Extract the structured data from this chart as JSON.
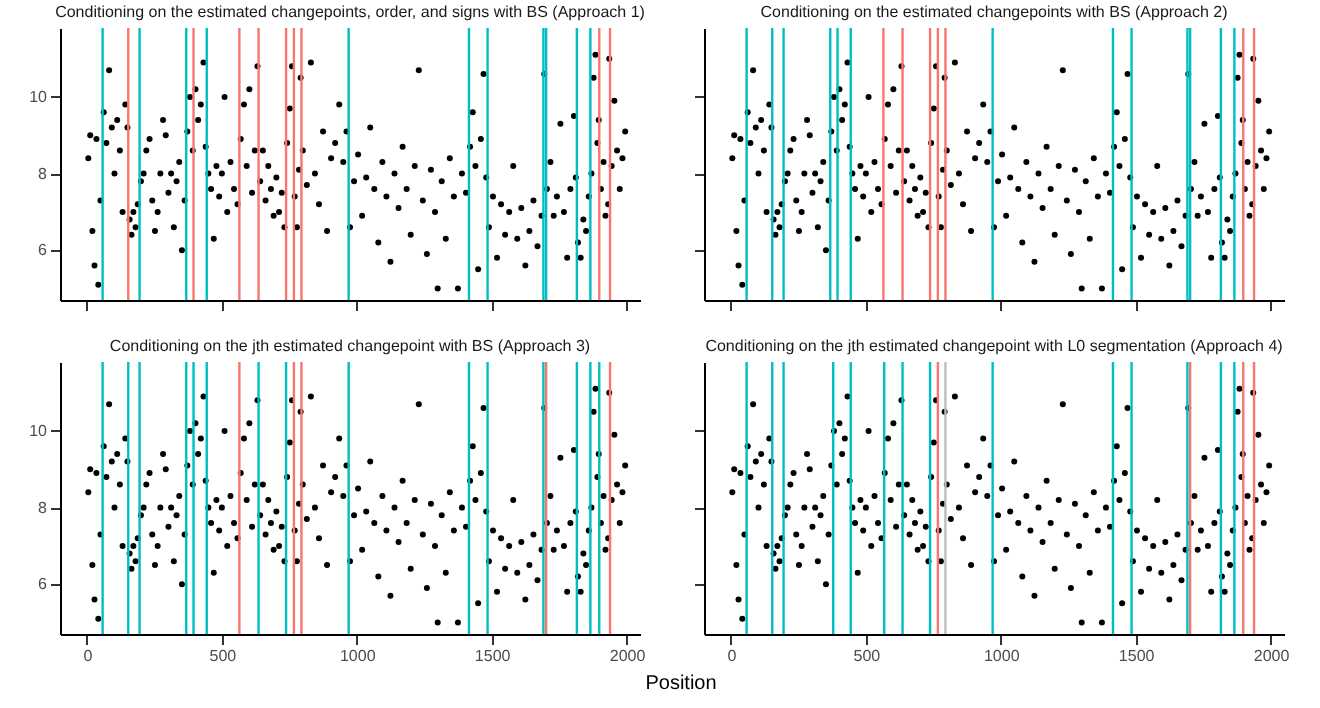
{
  "chart_data": [
    {
      "type": "scatter",
      "title": "Conditioning on the estimated changepoints, order, and signs with BS (Approach 1)",
      "marker": "circle",
      "tick_labels": "y",
      "xlim": [
        -100,
        2050
      ],
      "ylim": [
        4.7,
        11.8
      ],
      "xticks": [
        0,
        500,
        1000,
        1500,
        2000
      ],
      "yticks": [
        6,
        8,
        10
      ],
      "ref_lines": [
        {
          "axis": "x",
          "value": 58,
          "color": "#00bfc4"
        },
        {
          "axis": "x",
          "value": 153,
          "color": "#f8766d"
        },
        {
          "axis": "x",
          "value": 195,
          "color": "#00bfc4"
        },
        {
          "axis": "x",
          "value": 368,
          "color": "#00bfc4"
        },
        {
          "axis": "x",
          "value": 395,
          "color": "#f8766d"
        },
        {
          "axis": "x",
          "value": 444,
          "color": "#00bfc4"
        },
        {
          "axis": "x",
          "value": 565,
          "color": "#f8766d"
        },
        {
          "axis": "x",
          "value": 636,
          "color": "#f8766d"
        },
        {
          "axis": "x",
          "value": 738,
          "color": "#f8766d"
        },
        {
          "axis": "x",
          "value": 767,
          "color": "#f8766d"
        },
        {
          "axis": "x",
          "value": 795,
          "color": "#f8766d"
        },
        {
          "axis": "x",
          "value": 970,
          "color": "#00bfc4"
        },
        {
          "axis": "x",
          "value": 1416,
          "color": "#00bfc4"
        },
        {
          "axis": "x",
          "value": 1485,
          "color": "#00bfc4"
        },
        {
          "axis": "x",
          "value": 1692,
          "color": "#00bfc4"
        },
        {
          "axis": "x",
          "value": 1702,
          "color": "#00bfc4"
        },
        {
          "axis": "x",
          "value": 1816,
          "color": "#00bfc4"
        },
        {
          "axis": "x",
          "value": 1866,
          "color": "#00bfc4"
        },
        {
          "axis": "x",
          "value": 1899,
          "color": "#f8766d"
        },
        {
          "axis": "x",
          "value": 1939,
          "color": "#f8766d"
        }
      ],
      "series": [
        {
          "color": "#000000",
          "x": [
            5,
            12,
            20,
            28,
            35,
            42,
            50,
            62,
            72,
            82,
            92,
            102,
            112,
            122,
            132,
            142,
            150,
            158,
            165,
            172,
            180,
            188,
            200,
            210,
            220,
            232,
            242,
            252,
            262,
            272,
            282,
            292,
            302,
            312,
            322,
            332,
            342,
            352,
            362,
            372,
            382,
            392,
            402,
            412,
            422,
            432,
            440,
            450,
            460,
            470,
            480,
            490,
            500,
            510,
            520,
            532,
            545,
            558,
            570,
            582,
            592,
            602,
            612,
            622,
            632,
            642,
            652,
            662,
            672,
            682,
            692,
            702,
            712,
            722,
            732,
            742,
            752,
            760,
            770,
            778,
            786,
            792,
            800,
            815,
            830,
            845,
            860,
            875,
            890,
            905,
            920,
            935,
            950,
            962,
            975,
            990,
            1005,
            1020,
            1035,
            1050,
            1065,
            1080,
            1095,
            1110,
            1125,
            1140,
            1155,
            1170,
            1185,
            1200,
            1215,
            1230,
            1245,
            1260,
            1275,
            1290,
            1300,
            1315,
            1330,
            1345,
            1360,
            1375,
            1390,
            1405,
            1420,
            1430,
            1440,
            1450,
            1460,
            1470,
            1480,
            1490,
            1505,
            1520,
            1535,
            1550,
            1565,
            1580,
            1595,
            1610,
            1625,
            1640,
            1655,
            1670,
            1685,
            1695,
            1705,
            1718,
            1730,
            1742,
            1755,
            1768,
            1780,
            1792,
            1805,
            1812,
            1820,
            1830,
            1840,
            1850,
            1860,
            1870,
            1878,
            1885,
            1892,
            1897,
            1905,
            1915,
            1922,
            1932,
            1936,
            1945,
            1955,
            1965,
            1975,
            1985,
            1995
          ],
          "values": [
            8.4,
            9.0,
            6.5,
            5.6,
            8.9,
            5.1,
            7.3,
            9.6,
            8.8,
            10.7,
            9.2,
            8.0,
            9.4,
            8.6,
            7.0,
            9.8,
            9.2,
            6.8,
            6.4,
            7.0,
            6.6,
            7.2,
            7.8,
            8.0,
            8.6,
            8.9,
            7.3,
            6.5,
            7.0,
            8.0,
            9.4,
            9.0,
            7.5,
            8.0,
            6.6,
            7.8,
            8.3,
            6.0,
            7.3,
            9.1,
            10.0,
            8.6,
            10.2,
            9.4,
            9.8,
            10.9,
            8.7,
            8.0,
            7.6,
            6.3,
            8.2,
            7.4,
            8.0,
            10.0,
            7.0,
            8.3,
            7.6,
            7.2,
            8.9,
            9.8,
            8.2,
            10.2,
            7.5,
            8.6,
            10.8,
            7.8,
            8.6,
            7.3,
            8.2,
            7.6,
            6.9,
            7.9,
            7.0,
            7.5,
            6.6,
            8.8,
            9.7,
            10.8,
            7.4,
            6.6,
            8.1,
            10.5,
            8.6,
            7.7,
            10.9,
            8.0,
            7.2,
            9.1,
            6.5,
            8.4,
            8.8,
            9.8,
            8.3,
            9.1,
            6.6,
            7.8,
            8.5,
            6.9,
            7.9,
            9.2,
            7.6,
            6.2,
            8.3,
            7.4,
            5.7,
            8.0,
            7.1,
            8.7,
            7.6,
            6.4,
            8.2,
            10.7,
            7.3,
            5.9,
            8.1,
            7.0,
            5.0,
            7.8,
            6.3,
            8.4,
            7.4,
            5.0,
            8.0,
            7.5,
            8.7,
            9.6,
            8.2,
            5.5,
            8.9,
            10.6,
            7.9,
            6.6,
            7.4,
            5.8,
            7.2,
            6.4,
            7.0,
            8.2,
            6.3,
            7.1,
            5.6,
            6.5,
            7.3,
            6.1,
            6.9,
            10.6,
            7.6,
            8.3,
            6.9,
            7.4,
            9.3,
            7.0,
            5.8,
            7.6,
            9.5,
            7.9,
            6.2,
            5.8,
            6.8,
            6.5,
            7.4,
            8.0,
            10.5,
            11.1,
            8.8,
            9.4,
            7.6,
            8.3,
            6.9,
            7.2,
            11.0,
            8.2,
            9.9,
            8.6,
            7.6,
            8.4,
            9.1
          ]
        }
      ]
    },
    {
      "type": "scatter",
      "title": "Conditioning on the estimated changepoints with BS (Approach 2)",
      "marker": "circle",
      "tick_labels": false,
      "xlim": [
        -100,
        2050
      ],
      "ylim": [
        4.7,
        11.8
      ],
      "xticks": [
        0,
        500,
        1000,
        1500,
        2000
      ],
      "yticks": [
        6,
        8,
        10
      ],
      "ref_lines": [
        {
          "axis": "x",
          "value": 58,
          "color": "#00bfc4"
        },
        {
          "axis": "x",
          "value": 153,
          "color": "#00bfc4"
        },
        {
          "axis": "x",
          "value": 195,
          "color": "#00bfc4"
        },
        {
          "axis": "x",
          "value": 368,
          "color": "#00bfc4"
        },
        {
          "axis": "x",
          "value": 395,
          "color": "#00bfc4"
        },
        {
          "axis": "x",
          "value": 444,
          "color": "#00bfc4"
        },
        {
          "axis": "x",
          "value": 565,
          "color": "#f8766d"
        },
        {
          "axis": "x",
          "value": 636,
          "color": "#f8766d"
        },
        {
          "axis": "x",
          "value": 738,
          "color": "#f8766d"
        },
        {
          "axis": "x",
          "value": 767,
          "color": "#f8766d"
        },
        {
          "axis": "x",
          "value": 795,
          "color": "#f8766d"
        },
        {
          "axis": "x",
          "value": 970,
          "color": "#00bfc4"
        },
        {
          "axis": "x",
          "value": 1416,
          "color": "#00bfc4"
        },
        {
          "axis": "x",
          "value": 1485,
          "color": "#00bfc4"
        },
        {
          "axis": "x",
          "value": 1692,
          "color": "#00bfc4"
        },
        {
          "axis": "x",
          "value": 1702,
          "color": "#00bfc4"
        },
        {
          "axis": "x",
          "value": 1816,
          "color": "#00bfc4"
        },
        {
          "axis": "x",
          "value": 1866,
          "color": "#00bfc4"
        },
        {
          "axis": "x",
          "value": 1899,
          "color": "#f8766d"
        },
        {
          "axis": "x",
          "value": 1939,
          "color": "#f8766d"
        }
      ],
      "series": [
        {
          "color": "#000000",
          "x": [
            5,
            12,
            20,
            28,
            35,
            42,
            50,
            62,
            72,
            82,
            92,
            102,
            112,
            122,
            132,
            142,
            150,
            158,
            165,
            172,
            180,
            188,
            200,
            210,
            220,
            232,
            242,
            252,
            262,
            272,
            282,
            292,
            302,
            312,
            322,
            332,
            342,
            352,
            362,
            372,
            382,
            392,
            402,
            412,
            422,
            432,
            440,
            450,
            460,
            470,
            480,
            490,
            500,
            510,
            520,
            532,
            545,
            558,
            570,
            582,
            592,
            602,
            612,
            622,
            632,
            642,
            652,
            662,
            672,
            682,
            692,
            702,
            712,
            722,
            732,
            742,
            752,
            760,
            770,
            778,
            786,
            792,
            800,
            815,
            830,
            845,
            860,
            875,
            890,
            905,
            920,
            935,
            950,
            962,
            975,
            990,
            1005,
            1020,
            1035,
            1050,
            1065,
            1080,
            1095,
            1110,
            1125,
            1140,
            1155,
            1170,
            1185,
            1200,
            1215,
            1230,
            1245,
            1260,
            1275,
            1290,
            1300,
            1315,
            1330,
            1345,
            1360,
            1375,
            1390,
            1405,
            1420,
            1430,
            1440,
            1450,
            1460,
            1470,
            1480,
            1490,
            1505,
            1520,
            1535,
            1550,
            1565,
            1580,
            1595,
            1610,
            1625,
            1640,
            1655,
            1670,
            1685,
            1695,
            1705,
            1718,
            1730,
            1742,
            1755,
            1768,
            1780,
            1792,
            1805,
            1812,
            1820,
            1830,
            1840,
            1850,
            1860,
            1870,
            1878,
            1885,
            1892,
            1897,
            1905,
            1915,
            1922,
            1932,
            1936,
            1945,
            1955,
            1965,
            1975,
            1985,
            1995
          ],
          "values": [
            8.4,
            9.0,
            6.5,
            5.6,
            8.9,
            5.1,
            7.3,
            9.6,
            8.8,
            10.7,
            9.2,
            8.0,
            9.4,
            8.6,
            7.0,
            9.8,
            9.2,
            6.8,
            6.4,
            7.0,
            6.6,
            7.2,
            7.8,
            8.0,
            8.6,
            8.9,
            7.3,
            6.5,
            7.0,
            8.0,
            9.4,
            9.0,
            7.5,
            8.0,
            6.6,
            7.8,
            8.3,
            6.0,
            7.3,
            9.1,
            10.0,
            8.6,
            10.2,
            9.4,
            9.8,
            10.9,
            8.7,
            8.0,
            7.6,
            6.3,
            8.2,
            7.4,
            8.0,
            10.0,
            7.0,
            8.3,
            7.6,
            7.2,
            8.9,
            9.8,
            8.2,
            10.2,
            7.5,
            8.6,
            10.8,
            7.8,
            8.6,
            7.3,
            8.2,
            7.6,
            6.9,
            7.9,
            7.0,
            7.5,
            6.6,
            8.8,
            9.7,
            10.8,
            7.4,
            6.6,
            8.1,
            10.5,
            8.6,
            7.7,
            10.9,
            8.0,
            7.2,
            9.1,
            6.5,
            8.4,
            8.8,
            9.8,
            8.3,
            9.1,
            6.6,
            7.8,
            8.5,
            6.9,
            7.9,
            9.2,
            7.6,
            6.2,
            8.3,
            7.4,
            5.7,
            8.0,
            7.1,
            8.7,
            7.6,
            6.4,
            8.2,
            10.7,
            7.3,
            5.9,
            8.1,
            7.0,
            5.0,
            7.8,
            6.3,
            8.4,
            7.4,
            5.0,
            8.0,
            7.5,
            8.7,
            9.6,
            8.2,
            5.5,
            8.9,
            10.6,
            7.9,
            6.6,
            7.4,
            5.8,
            7.2,
            6.4,
            7.0,
            8.2,
            6.3,
            7.1,
            5.6,
            6.5,
            7.3,
            6.1,
            6.9,
            10.6,
            7.6,
            8.3,
            6.9,
            7.4,
            9.3,
            7.0,
            5.8,
            7.6,
            9.5,
            7.9,
            6.2,
            5.8,
            6.8,
            6.5,
            7.4,
            8.0,
            10.5,
            11.1,
            8.8,
            9.4,
            7.6,
            8.3,
            6.9,
            7.2,
            11.0,
            8.2,
            9.9,
            8.6,
            7.6,
            8.4,
            9.1
          ]
        }
      ]
    },
    {
      "type": "scatter",
      "title": "Conditioning on the jth estimated changepoint with BS (Approach 3)",
      "xlabel": "Position",
      "marker": "circle",
      "xlim": [
        -100,
        2050
      ],
      "ylim": [
        4.7,
        11.8
      ],
      "xticks": [
        0,
        500,
        1000,
        1500,
        2000
      ],
      "yticks": [
        6,
        8,
        10
      ],
      "ref_lines": [
        {
          "axis": "x",
          "value": 58,
          "color": "#00bfc4"
        },
        {
          "axis": "x",
          "value": 153,
          "color": "#00bfc4"
        },
        {
          "axis": "x",
          "value": 195,
          "color": "#00bfc4"
        },
        {
          "axis": "x",
          "value": 368,
          "color": "#00bfc4"
        },
        {
          "axis": "x",
          "value": 395,
          "color": "#00bfc4"
        },
        {
          "axis": "x",
          "value": 444,
          "color": "#00bfc4"
        },
        {
          "axis": "x",
          "value": 565,
          "color": "#f8766d"
        },
        {
          "axis": "x",
          "value": 636,
          "color": "#00bfc4"
        },
        {
          "axis": "x",
          "value": 738,
          "color": "#00bfc4"
        },
        {
          "axis": "x",
          "value": 767,
          "color": "#f8766d"
        },
        {
          "axis": "x",
          "value": 795,
          "color": "#f8766d"
        },
        {
          "axis": "x",
          "value": 970,
          "color": "#00bfc4"
        },
        {
          "axis": "x",
          "value": 1416,
          "color": "#00bfc4"
        },
        {
          "axis": "x",
          "value": 1485,
          "color": "#00bfc4"
        },
        {
          "axis": "x",
          "value": 1692,
          "color": "#00bfc4"
        },
        {
          "axis": "x",
          "value": 1702,
          "color": "#f8766d"
        },
        {
          "axis": "x",
          "value": 1816,
          "color": "#00bfc4"
        },
        {
          "axis": "x",
          "value": 1866,
          "color": "#00bfc4"
        },
        {
          "axis": "x",
          "value": 1899,
          "color": "#00bfc4"
        },
        {
          "axis": "x",
          "value": 1939,
          "color": "#f8766d"
        }
      ],
      "series": [
        {
          "color": "#000000",
          "x": [
            5,
            12,
            20,
            28,
            35,
            42,
            50,
            62,
            72,
            82,
            92,
            102,
            112,
            122,
            132,
            142,
            150,
            158,
            165,
            172,
            180,
            188,
            200,
            210,
            220,
            232,
            242,
            252,
            262,
            272,
            282,
            292,
            302,
            312,
            322,
            332,
            342,
            352,
            362,
            372,
            382,
            392,
            402,
            412,
            422,
            432,
            440,
            450,
            460,
            470,
            480,
            490,
            500,
            510,
            520,
            532,
            545,
            558,
            570,
            582,
            592,
            602,
            612,
            622,
            632,
            642,
            652,
            662,
            672,
            682,
            692,
            702,
            712,
            722,
            732,
            742,
            752,
            760,
            770,
            778,
            786,
            792,
            800,
            815,
            830,
            845,
            860,
            875,
            890,
            905,
            920,
            935,
            950,
            962,
            975,
            990,
            1005,
            1020,
            1035,
            1050,
            1065,
            1080,
            1095,
            1110,
            1125,
            1140,
            1155,
            1170,
            1185,
            1200,
            1215,
            1230,
            1245,
            1260,
            1275,
            1290,
            1300,
            1315,
            1330,
            1345,
            1360,
            1375,
            1390,
            1405,
            1420,
            1430,
            1440,
            1450,
            1460,
            1470,
            1480,
            1490,
            1505,
            1520,
            1535,
            1550,
            1565,
            1580,
            1595,
            1610,
            1625,
            1640,
            1655,
            1670,
            1685,
            1695,
            1705,
            1718,
            1730,
            1742,
            1755,
            1768,
            1780,
            1792,
            1805,
            1812,
            1820,
            1830,
            1840,
            1850,
            1860,
            1870,
            1878,
            1885,
            1892,
            1897,
            1905,
            1915,
            1922,
            1932,
            1936,
            1945,
            1955,
            1965,
            1975,
            1985,
            1995
          ],
          "values": [
            8.4,
            9.0,
            6.5,
            5.6,
            8.9,
            5.1,
            7.3,
            9.6,
            8.8,
            10.7,
            9.2,
            8.0,
            9.4,
            8.6,
            7.0,
            9.8,
            9.2,
            6.8,
            6.4,
            7.0,
            6.6,
            7.2,
            7.8,
            8.0,
            8.6,
            8.9,
            7.3,
            6.5,
            7.0,
            8.0,
            9.4,
            9.0,
            7.5,
            8.0,
            6.6,
            7.8,
            8.3,
            6.0,
            7.3,
            9.1,
            10.0,
            8.6,
            10.2,
            9.4,
            9.8,
            10.9,
            8.7,
            8.0,
            7.6,
            6.3,
            8.2,
            7.4,
            8.0,
            10.0,
            7.0,
            8.3,
            7.6,
            7.2,
            8.9,
            9.8,
            8.2,
            10.2,
            7.5,
            8.6,
            10.8,
            7.8,
            8.6,
            7.3,
            8.2,
            7.6,
            6.9,
            7.9,
            7.0,
            7.5,
            6.6,
            8.8,
            9.7,
            10.8,
            7.4,
            6.6,
            8.1,
            10.5,
            8.6,
            7.7,
            10.9,
            8.0,
            7.2,
            9.1,
            6.5,
            8.4,
            8.8,
            9.8,
            8.3,
            9.1,
            6.6,
            7.8,
            8.5,
            6.9,
            7.9,
            9.2,
            7.6,
            6.2,
            8.3,
            7.4,
            5.7,
            8.0,
            7.1,
            8.7,
            7.6,
            6.4,
            8.2,
            10.7,
            7.3,
            5.9,
            8.1,
            7.0,
            5.0,
            7.8,
            6.3,
            8.4,
            7.4,
            5.0,
            8.0,
            7.5,
            8.7,
            9.6,
            8.2,
            5.5,
            8.9,
            10.6,
            7.9,
            6.6,
            7.4,
            5.8,
            7.2,
            6.4,
            7.0,
            8.2,
            6.3,
            7.1,
            5.6,
            6.5,
            7.3,
            6.1,
            6.9,
            10.6,
            7.6,
            8.3,
            6.9,
            7.4,
            9.3,
            7.0,
            5.8,
            7.6,
            9.5,
            7.9,
            6.2,
            5.8,
            6.8,
            6.5,
            7.4,
            8.0,
            10.5,
            11.1,
            8.8,
            9.4,
            7.6,
            8.3,
            6.9,
            7.2,
            11.0,
            8.2,
            9.9,
            8.6,
            7.6,
            8.4,
            9.1
          ]
        }
      ]
    },
    {
      "type": "scatter",
      "title": "Conditioning on the jth estimated changepoint with L0 segmentation (Approach 4)",
      "marker": "circle",
      "tick_labels": "x",
      "xlim": [
        -100,
        2050
      ],
      "ylim": [
        4.7,
        11.8
      ],
      "xticks": [
        0,
        500,
        1000,
        1500,
        2000
      ],
      "yticks": [
        6,
        8,
        10
      ],
      "ref_lines": [
        {
          "axis": "x",
          "value": 58,
          "color": "#00bfc4"
        },
        {
          "axis": "x",
          "value": 153,
          "color": "#00bfc4"
        },
        {
          "axis": "x",
          "value": 195,
          "color": "#00bfc4"
        },
        {
          "axis": "x",
          "value": 379,
          "color": "#00bfc4"
        },
        {
          "axis": "x",
          "value": 444,
          "color": "#00bfc4"
        },
        {
          "axis": "x",
          "value": 568,
          "color": "#00bfc4"
        },
        {
          "axis": "x",
          "value": 636,
          "color": "#00bfc4"
        },
        {
          "axis": "x",
          "value": 738,
          "color": "#00bfc4"
        },
        {
          "axis": "x",
          "value": 767,
          "color": "#f8766d"
        },
        {
          "axis": "x",
          "value": 795,
          "color": "#bdbdbd"
        },
        {
          "axis": "x",
          "value": 970,
          "color": "#00bfc4"
        },
        {
          "axis": "x",
          "value": 1416,
          "color": "#00bfc4"
        },
        {
          "axis": "x",
          "value": 1485,
          "color": "#00bfc4"
        },
        {
          "axis": "x",
          "value": 1692,
          "color": "#00bfc4"
        },
        {
          "axis": "x",
          "value": 1702,
          "color": "#f8766d"
        },
        {
          "axis": "x",
          "value": 1816,
          "color": "#00bfc4"
        },
        {
          "axis": "x",
          "value": 1866,
          "color": "#00bfc4"
        },
        {
          "axis": "x",
          "value": 1899,
          "color": "#f8766d"
        },
        {
          "axis": "x",
          "value": 1939,
          "color": "#f8766d"
        }
      ],
      "series": [
        {
          "color": "#000000",
          "x": [
            5,
            12,
            20,
            28,
            35,
            42,
            50,
            62,
            72,
            82,
            92,
            102,
            112,
            122,
            132,
            142,
            150,
            158,
            165,
            172,
            180,
            188,
            200,
            210,
            220,
            232,
            242,
            252,
            262,
            272,
            282,
            292,
            302,
            312,
            322,
            332,
            342,
            352,
            362,
            372,
            382,
            392,
            402,
            412,
            422,
            432,
            440,
            450,
            460,
            470,
            480,
            490,
            500,
            510,
            520,
            532,
            545,
            558,
            570,
            582,
            592,
            602,
            612,
            622,
            632,
            642,
            652,
            662,
            672,
            682,
            692,
            702,
            712,
            722,
            732,
            742,
            752,
            760,
            770,
            778,
            786,
            792,
            800,
            815,
            830,
            845,
            860,
            875,
            890,
            905,
            920,
            935,
            950,
            962,
            975,
            990,
            1005,
            1020,
            1035,
            1050,
            1065,
            1080,
            1095,
            1110,
            1125,
            1140,
            1155,
            1170,
            1185,
            1200,
            1215,
            1230,
            1245,
            1260,
            1275,
            1290,
            1300,
            1315,
            1330,
            1345,
            1360,
            1375,
            1390,
            1405,
            1420,
            1430,
            1440,
            1450,
            1460,
            1470,
            1480,
            1490,
            1505,
            1520,
            1535,
            1550,
            1565,
            1580,
            1595,
            1610,
            1625,
            1640,
            1655,
            1670,
            1685,
            1695,
            1705,
            1718,
            1730,
            1742,
            1755,
            1768,
            1780,
            1792,
            1805,
            1812,
            1820,
            1830,
            1840,
            1850,
            1860,
            1870,
            1878,
            1885,
            1892,
            1897,
            1905,
            1915,
            1922,
            1932,
            1936,
            1945,
            1955,
            1965,
            1975,
            1985,
            1995
          ],
          "values": [
            8.4,
            9.0,
            6.5,
            5.6,
            8.9,
            5.1,
            7.3,
            9.6,
            8.8,
            10.7,
            9.2,
            8.0,
            9.4,
            8.6,
            7.0,
            9.8,
            9.2,
            6.8,
            6.4,
            7.0,
            6.6,
            7.2,
            7.8,
            8.0,
            8.6,
            8.9,
            7.3,
            6.5,
            7.0,
            8.0,
            9.4,
            9.0,
            7.5,
            8.0,
            6.6,
            7.8,
            8.3,
            6.0,
            7.3,
            9.1,
            10.0,
            8.6,
            10.2,
            9.4,
            9.8,
            10.9,
            8.7,
            8.0,
            7.6,
            6.3,
            8.2,
            7.4,
            8.0,
            10.0,
            7.0,
            8.3,
            7.6,
            7.2,
            8.9,
            9.8,
            8.2,
            10.2,
            7.5,
            8.6,
            10.8,
            7.8,
            8.6,
            7.3,
            8.2,
            7.6,
            6.9,
            7.9,
            7.0,
            7.5,
            6.6,
            8.8,
            9.7,
            10.8,
            7.4,
            6.6,
            8.1,
            10.5,
            8.6,
            7.7,
            10.9,
            8.0,
            7.2,
            9.1,
            6.5,
            8.4,
            8.8,
            9.8,
            8.3,
            9.1,
            6.6,
            7.8,
            8.5,
            6.9,
            7.9,
            9.2,
            7.6,
            6.2,
            8.3,
            7.4,
            5.7,
            8.0,
            7.1,
            8.7,
            7.6,
            6.4,
            8.2,
            10.7,
            7.3,
            5.9,
            8.1,
            7.0,
            5.0,
            7.8,
            6.3,
            8.4,
            7.4,
            5.0,
            8.0,
            7.5,
            8.7,
            9.6,
            8.2,
            5.5,
            8.9,
            10.6,
            7.9,
            6.6,
            7.4,
            5.8,
            7.2,
            6.4,
            7.0,
            8.2,
            6.3,
            7.1,
            5.6,
            6.5,
            7.3,
            6.1,
            6.9,
            10.6,
            7.6,
            8.3,
            6.9,
            7.4,
            9.3,
            7.0,
            5.8,
            7.6,
            9.5,
            7.9,
            6.2,
            5.8,
            6.8,
            6.5,
            7.4,
            8.0,
            10.5,
            11.1,
            8.8,
            9.4,
            7.6,
            8.3,
            6.9,
            7.2,
            11.0,
            8.2,
            9.9,
            8.6,
            7.6,
            8.4,
            9.1
          ]
        }
      ]
    }
  ]
}
